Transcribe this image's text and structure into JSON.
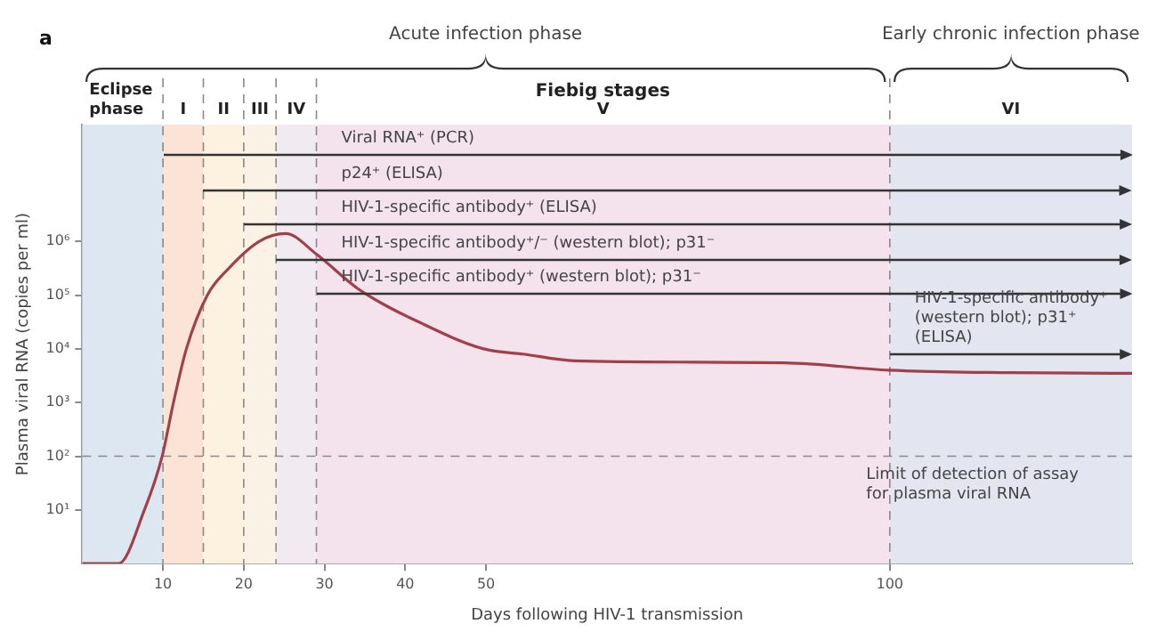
{
  "chart_data": {
    "type": "line",
    "xlabel": "Days following HIV-1 transmission",
    "ylabel": "Plasma viral RNA (copies per ml)",
    "x": [
      0,
      4.5,
      7.7,
      9.9,
      11.3,
      12.9,
      15.5,
      18,
      21.9,
      25.2,
      29,
      34.2,
      42,
      49.7,
      54.6,
      61,
      87,
      100,
      115,
      130
    ],
    "values": [
      1,
      1,
      10,
      100,
      1000,
      10000,
      100000,
      300000,
      1000000,
      1400000,
      580000,
      130000,
      30000,
      10000,
      8000,
      6000,
      5500,
      4000,
      3600,
      3500
    ],
    "color": "#a0404a",
    "xlim": [
      0,
      130
    ],
    "xticks": [
      10,
      20,
      30,
      40,
      50,
      100
    ],
    "ylim": [
      1,
      150000000
    ],
    "yticks": [
      {
        "value": 10,
        "label": "10¹"
      },
      {
        "value": 100,
        "label": "10²"
      },
      {
        "value": 1000,
        "label": "10³"
      },
      {
        "value": 10000,
        "label": "10⁴"
      },
      {
        "value": 100000,
        "label": "10⁵"
      },
      {
        "value": 1000000,
        "label": "10⁶"
      }
    ],
    "log": true,
    "grid": false,
    "legend": false,
    "marker": "none",
    "line_style": "solid",
    "bands": [
      {
        "axis": "x",
        "from": 0,
        "to": 10,
        "label": "Eclipse phase",
        "color": "#dde7f1"
      },
      {
        "axis": "x",
        "from": 10,
        "to": 15,
        "label": "I",
        "color": "#fbe4d6"
      },
      {
        "axis": "x",
        "from": 15,
        "to": 20,
        "label": "II",
        "color": "#fdf1e0"
      },
      {
        "axis": "x",
        "from": 20,
        "to": 24,
        "label": "III",
        "color": "#faf2e4"
      },
      {
        "axis": "x",
        "from": 24,
        "to": 29,
        "label": "IV",
        "color": "#f1ebf1"
      },
      {
        "axis": "x",
        "from": 29,
        "to": 100,
        "label": "V",
        "color": "#f4e3ec"
      },
      {
        "axis": "x",
        "from": 100,
        "to": 130,
        "label": "VI",
        "color": "#e3e5f0"
      }
    ],
    "ref_lines": [
      {
        "axis": "x",
        "value": 10,
        "line_style": "dashed"
      },
      {
        "axis": "x",
        "value": 15,
        "line_style": "dashed"
      },
      {
        "axis": "x",
        "value": 20,
        "line_style": "dashed"
      },
      {
        "axis": "x",
        "value": 24,
        "line_style": "dashed"
      },
      {
        "axis": "x",
        "value": 29,
        "line_style": "dashed"
      },
      {
        "axis": "x",
        "value": 100,
        "line_style": "dashed"
      },
      {
        "axis": "y",
        "value": 100,
        "label": "Limit of detection of assay for plasma viral RNA",
        "line_style": "dashed"
      }
    ],
    "annotations": [
      "a",
      "Acute infection phase",
      "Early chronic infection phase",
      "Fiebig stages",
      "Viral RNA⁺ (PCR)",
      "p24⁺ (ELISA)",
      "HIV-1-specific antibody⁺ (ELISA)",
      "HIV-1-specific antibody⁺/⁻ (western blot); p31⁻",
      "HIV-1-specific antibody⁺ (western blot); p31⁻",
      "HIV-1-specific antibody⁺ (western blot); p31⁺ (ELISA)"
    ]
  }
}
